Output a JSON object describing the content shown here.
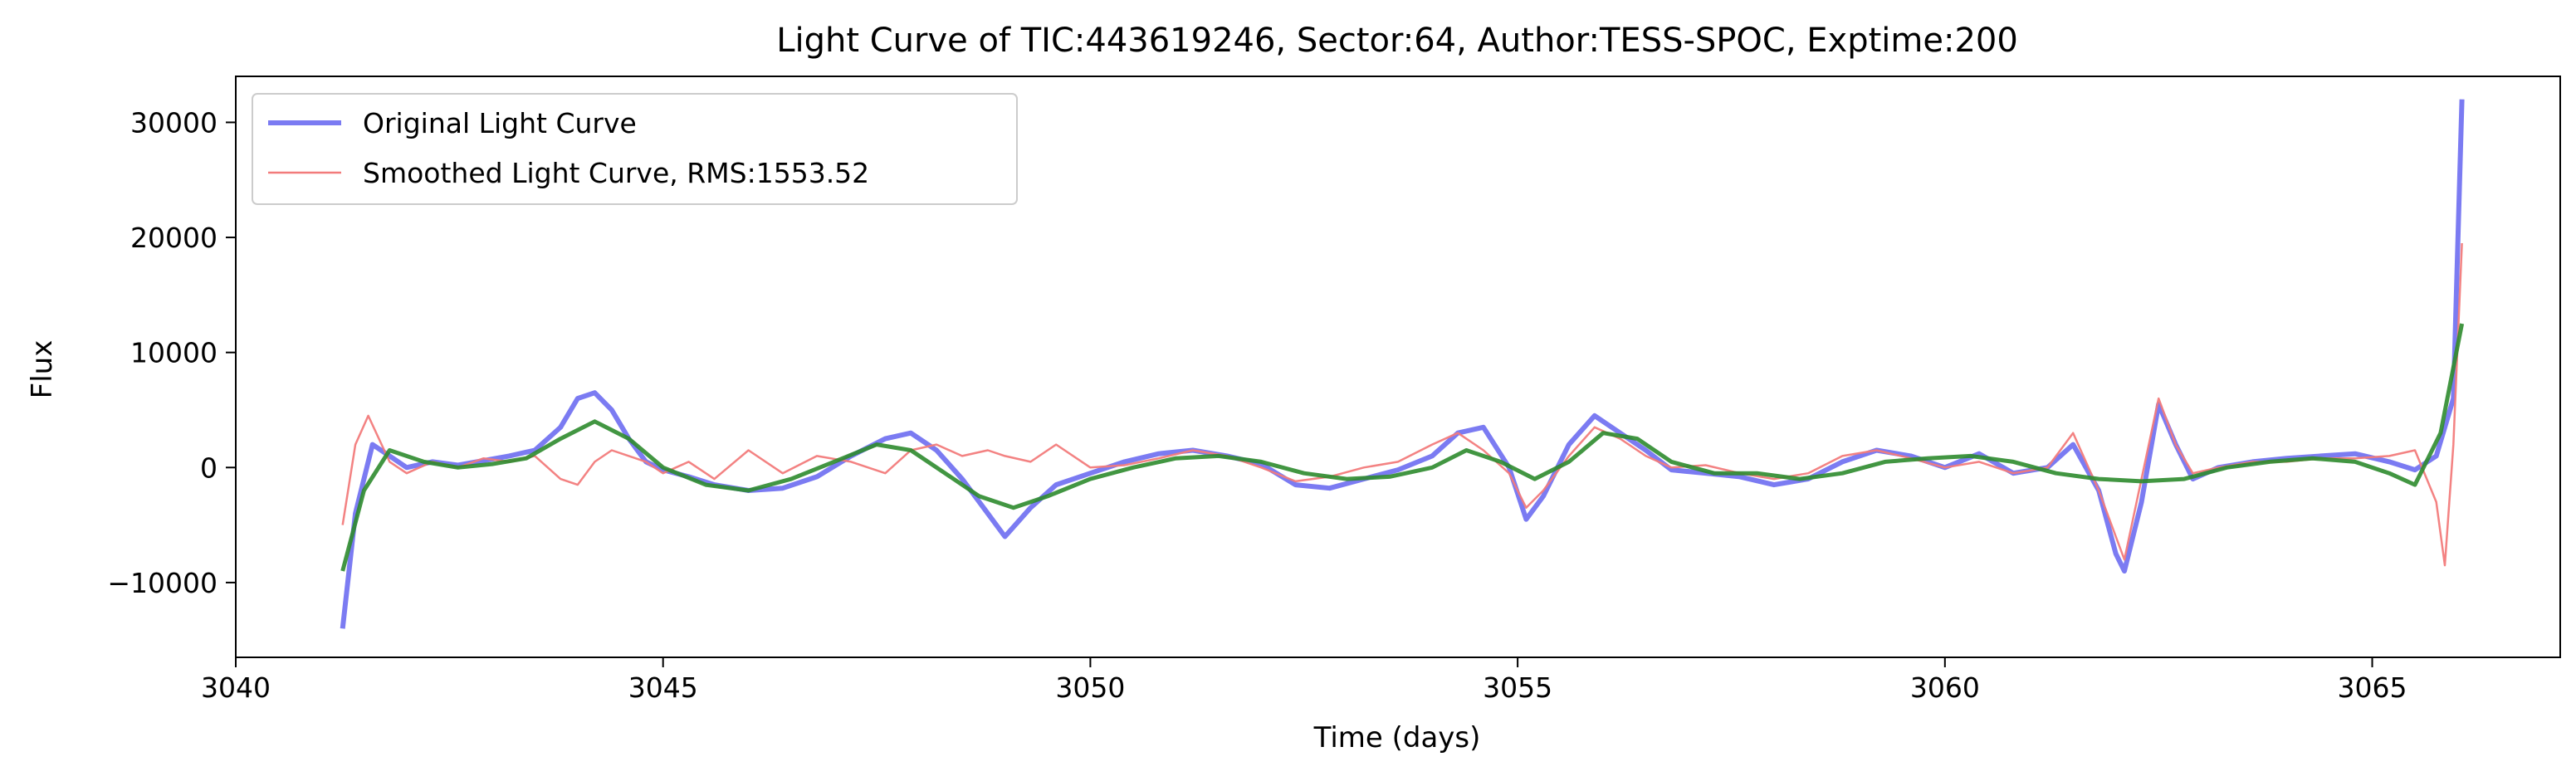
{
  "chart_data": {
    "type": "line",
    "title": "Light Curve of TIC:443619246, Sector:64, Author:TESS-SPOC, Exptime:200",
    "xlabel": "Time (days)",
    "ylabel": "Flux",
    "xlim": [
      3040,
      3067.2
    ],
    "ylim": [
      -16500,
      34000
    ],
    "xticks": [
      3040,
      3045,
      3050,
      3055,
      3060,
      3065
    ],
    "yticks": [
      -10000,
      0,
      10000,
      20000,
      30000
    ],
    "xtick_labels": [
      "3040",
      "3045",
      "3050",
      "3055",
      "3060",
      "3065"
    ],
    "ytick_labels": [
      "−10000",
      "0",
      "10000",
      "20000",
      "30000"
    ],
    "grid": false,
    "legend_position": "top-left",
    "series": [
      {
        "name": "Original Light Curve",
        "color": "#7b7bf2",
        "x": [
          3041.25,
          3041.4,
          3041.6,
          3041.8,
          3042.0,
          3042.3,
          3042.6,
          3042.9,
          3043.2,
          3043.5,
          3043.8,
          3044.0,
          3044.2,
          3044.4,
          3044.6,
          3044.8,
          3045.0,
          3045.3,
          3045.6,
          3046.0,
          3046.4,
          3046.8,
          3047.2,
          3047.6,
          3047.9,
          3048.2,
          3048.5,
          3048.8,
          3049.0,
          3049.3,
          3049.6,
          3050.0,
          3050.4,
          3050.8,
          3051.2,
          3051.6,
          3052.0,
          3052.4,
          3052.8,
          3053.2,
          3053.6,
          3054.0,
          3054.3,
          3054.6,
          3054.9,
          3055.1,
          3055.3,
          3055.6,
          3055.9,
          3056.2,
          3056.5,
          3056.8,
          3057.2,
          3057.6,
          3058.0,
          3058.4,
          3058.8,
          3059.2,
          3059.6,
          3060.0,
          3060.4,
          3060.8,
          3061.2,
          3061.5,
          3061.8,
          3062.0,
          3062.1,
          3062.3,
          3062.5,
          3062.7,
          3062.9,
          3063.2,
          3063.6,
          3064.0,
          3064.4,
          3064.8,
          3065.2,
          3065.5,
          3065.75,
          3065.95,
          3066.05
        ],
        "values": [
          -14000,
          -4000,
          2000,
          1000,
          0,
          500,
          200,
          600,
          1000,
          1500,
          3500,
          6000,
          6500,
          5000,
          2500,
          500,
          -200,
          -800,
          -1500,
          -2000,
          -1800,
          -800,
          1000,
          2500,
          3000,
          1500,
          -1000,
          -4000,
          -6000,
          -3500,
          -1500,
          -500,
          500,
          1200,
          1500,
          1000,
          300,
          -1500,
          -1800,
          -1000,
          -200,
          1000,
          3000,
          3500,
          0,
          -4500,
          -2500,
          2000,
          4500,
          3000,
          1500,
          -200,
          -500,
          -800,
          -1500,
          -1000,
          500,
          1500,
          1000,
          0,
          1200,
          -500,
          0,
          2000,
          -2000,
          -7500,
          -9000,
          -3000,
          5500,
          2000,
          -1000,
          0,
          500,
          800,
          1000,
          1200,
          500,
          -200,
          1000,
          6000,
          32000
        ]
      },
      {
        "name": "Smoothed Light Curve, RMS:1553.52",
        "color": "#f27b7b",
        "x": [
          3041.25,
          3041.4,
          3041.55,
          3041.8,
          3042.0,
          3042.3,
          3042.6,
          3042.9,
          3043.2,
          3043.5,
          3043.8,
          3044.0,
          3044.2,
          3044.4,
          3044.6,
          3044.8,
          3045.0,
          3045.3,
          3045.6,
          3046.0,
          3046.4,
          3046.8,
          3047.2,
          3047.6,
          3047.9,
          3048.2,
          3048.5,
          3048.8,
          3049.0,
          3049.3,
          3049.6,
          3050.0,
          3050.4,
          3050.8,
          3051.2,
          3051.6,
          3052.0,
          3052.4,
          3052.8,
          3053.2,
          3053.6,
          3054.0,
          3054.3,
          3054.6,
          3054.9,
          3055.1,
          3055.3,
          3055.6,
          3055.9,
          3056.2,
          3056.5,
          3056.8,
          3057.2,
          3057.6,
          3058.0,
          3058.4,
          3058.8,
          3059.2,
          3059.6,
          3060.0,
          3060.4,
          3060.8,
          3061.2,
          3061.5,
          3061.8,
          3062.0,
          3062.1,
          3062.3,
          3062.5,
          3062.7,
          3062.9,
          3063.2,
          3063.6,
          3064.0,
          3064.4,
          3064.8,
          3065.2,
          3065.5,
          3065.75,
          3065.85,
          3065.95,
          3066.05
        ],
        "values": [
          -5000,
          2000,
          4500,
          500,
          -500,
          500,
          0,
          800,
          500,
          1000,
          -1000,
          -1500,
          500,
          1500,
          1000,
          500,
          -500,
          500,
          -1000,
          1500,
          -500,
          1000,
          500,
          -500,
          1500,
          2000,
          1000,
          1500,
          1000,
          500,
          2000,
          0,
          200,
          800,
          1500,
          1000,
          0,
          -1200,
          -800,
          0,
          500,
          2000,
          3000,
          1500,
          -500,
          -3500,
          -2000,
          1000,
          3500,
          2500,
          1000,
          0,
          200,
          -500,
          -1000,
          -500,
          1000,
          1500,
          800,
          0,
          500,
          -500,
          0,
          3000,
          -2000,
          -6000,
          -8000,
          -1000,
          6000,
          2000,
          -500,
          0,
          500,
          500,
          800,
          800,
          1000,
          1500,
          -3000,
          -8500,
          2000,
          19500
        ]
      },
      {
        "name": "",
        "color": "#2e8b2e",
        "x": [
          3041.25,
          3041.5,
          3041.8,
          3042.2,
          3042.6,
          3043.0,
          3043.4,
          3043.8,
          3044.2,
          3044.6,
          3045.0,
          3045.5,
          3046.0,
          3046.5,
          3047.0,
          3047.5,
          3047.9,
          3048.3,
          3048.7,
          3049.1,
          3049.5,
          3050.0,
          3050.5,
          3051.0,
          3051.5,
          3052.0,
          3052.5,
          3053.0,
          3053.5,
          3054.0,
          3054.4,
          3054.8,
          3055.2,
          3055.6,
          3056.0,
          3056.4,
          3056.8,
          3057.3,
          3057.8,
          3058.3,
          3058.8,
          3059.3,
          3059.8,
          3060.3,
          3060.8,
          3061.3,
          3061.8,
          3062.3,
          3062.8,
          3063.3,
          3063.8,
          3064.3,
          3064.8,
          3065.2,
          3065.5,
          3065.8,
          3066.05
        ],
        "values": [
          -9000,
          -2000,
          1500,
          500,
          0,
          300,
          800,
          2500,
          4000,
          2500,
          0,
          -1500,
          -2000,
          -1000,
          500,
          2000,
          1500,
          -500,
          -2500,
          -3500,
          -2500,
          -1000,
          0,
          800,
          1000,
          500,
          -500,
          -1000,
          -800,
          0,
          1500,
          500,
          -1000,
          500,
          3000,
          2500,
          500,
          -500,
          -500,
          -1000,
          -500,
          500,
          800,
          1000,
          500,
          -500,
          -1000,
          -1200,
          -1000,
          0,
          500,
          800,
          500,
          -500,
          -1500,
          3000,
          12500
        ]
      }
    ]
  }
}
